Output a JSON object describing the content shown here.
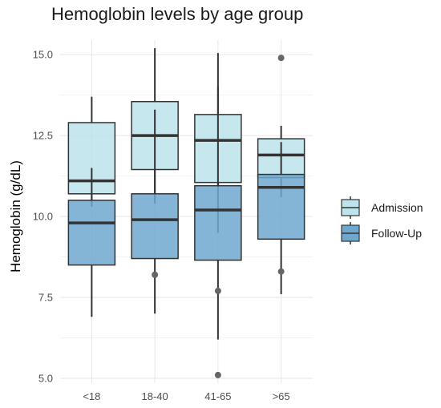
{
  "chart_data": {
    "type": "boxplot",
    "title": "Hemoglobin levels by age group",
    "xlabel": "",
    "ylabel": "Hemoglobin (g/dL)",
    "ylim": [
      4.85,
      15.45
    ],
    "yticks": [
      "5.0",
      "7.5",
      "10.0",
      "12.5",
      "15.0"
    ],
    "categories": [
      "<18",
      "18-40",
      "41-65",
      ">65"
    ],
    "grid": true,
    "legend_position": "right",
    "series": [
      {
        "name": "Admission",
        "color": "#bde3ec",
        "boxes": [
          {
            "q1": 10.7,
            "median": 11.1,
            "q3": 12.9,
            "whisker_low": 10.3,
            "whisker_high": 13.7,
            "outliers": []
          },
          {
            "q1": 11.45,
            "median": 12.5,
            "q3": 13.55,
            "whisker_low": 10.4,
            "whisker_high": 15.2,
            "outliers": []
          },
          {
            "q1": 11.05,
            "median": 12.35,
            "q3": 13.15,
            "whisker_low": 9.5,
            "whisker_high": 15.05,
            "outliers": []
          },
          {
            "q1": 11.2,
            "median": 11.9,
            "q3": 12.4,
            "whisker_low": 10.6,
            "whisker_high": 12.8,
            "outliers": [
              14.9
            ]
          }
        ]
      },
      {
        "name": "Follow-Up",
        "color": "#6fa8cf",
        "boxes": [
          {
            "q1": 8.5,
            "median": 9.8,
            "q3": 10.5,
            "whisker_low": 6.9,
            "whisker_high": 11.5,
            "outliers": []
          },
          {
            "q1": 8.7,
            "median": 9.9,
            "q3": 10.7,
            "whisker_low": 7.0,
            "whisker_high": 13.3,
            "outliers": [
              8.2
            ]
          },
          {
            "q1": 8.65,
            "median": 10.2,
            "q3": 10.95,
            "whisker_low": 6.2,
            "whisker_high": 14.0,
            "outliers": [
              7.7,
              5.1
            ]
          },
          {
            "q1": 9.3,
            "median": 10.9,
            "q3": 11.3,
            "whisker_low": 7.6,
            "whisker_high": 12.3,
            "outliers": [
              8.3
            ]
          }
        ]
      }
    ]
  }
}
